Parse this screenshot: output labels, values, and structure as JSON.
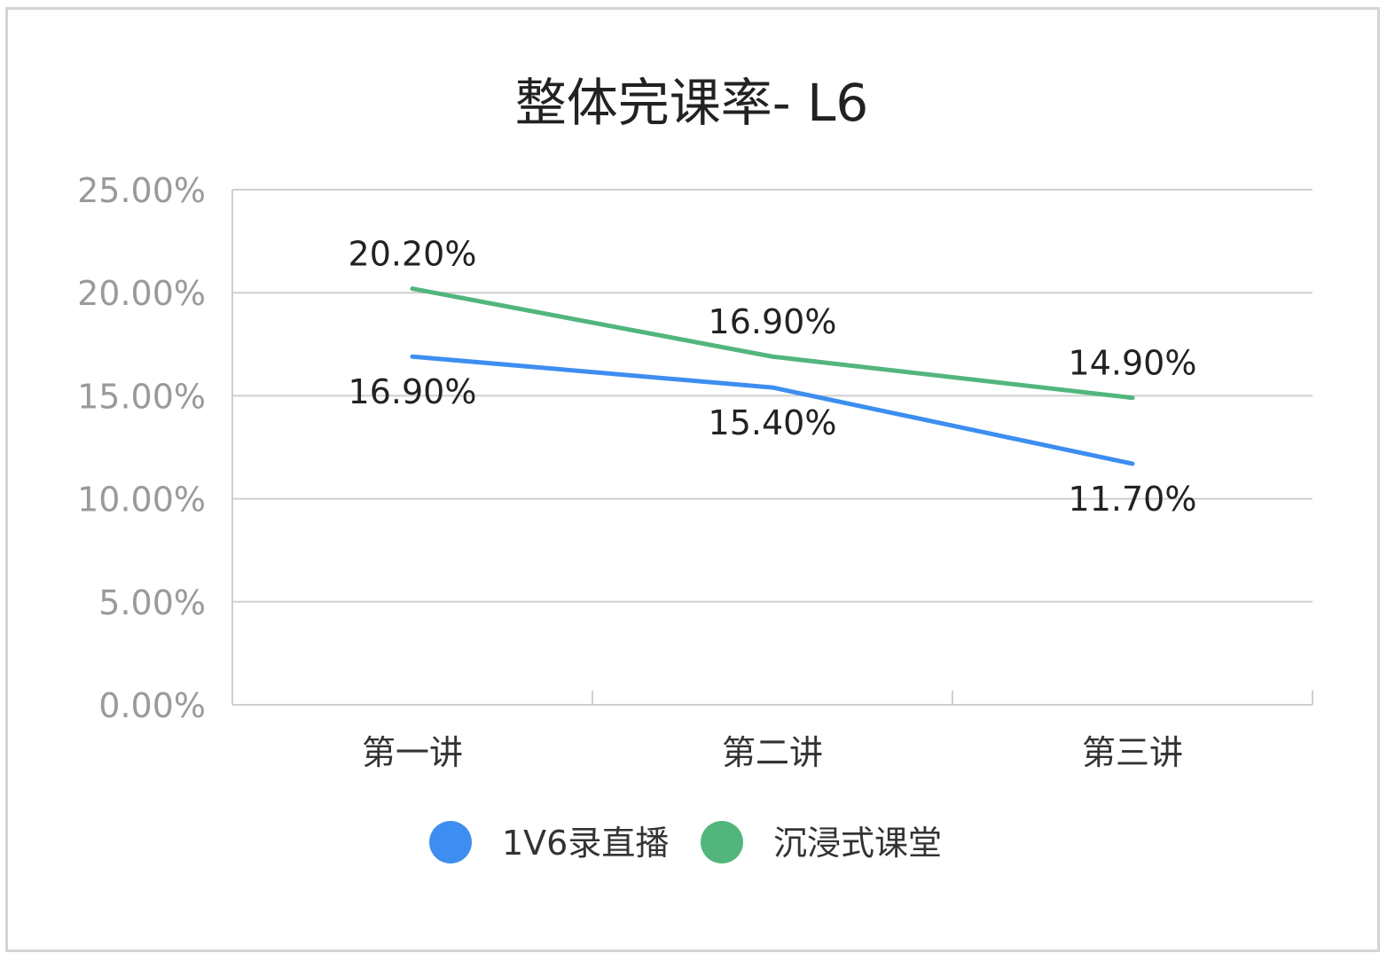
{
  "chart_data": {
    "type": "line",
    "title": "整体完课率- L6",
    "categories": [
      "第一讲",
      "第二讲",
      "第三讲"
    ],
    "series": [
      {
        "name": "1V6录直播",
        "values": [
          16.9,
          15.4,
          11.7
        ],
        "labels": [
          "16.90%",
          "15.40%",
          "11.70%"
        ],
        "color": "#3d8ef0"
      },
      {
        "name": "沉浸式课堂",
        "values": [
          20.2,
          16.9,
          14.9
        ],
        "labels": [
          "20.20%",
          "16.90%",
          "14.90%"
        ],
        "color": "#52b67c"
      }
    ],
    "ylim": [
      0,
      25
    ],
    "y_ticks": [
      0,
      5,
      10,
      15,
      20,
      25
    ],
    "y_tick_labels": [
      "0.00%",
      "5.00%",
      "10.00%",
      "15.00%",
      "20.00%",
      "25.00%"
    ],
    "grid": true,
    "legend": "bottom"
  }
}
